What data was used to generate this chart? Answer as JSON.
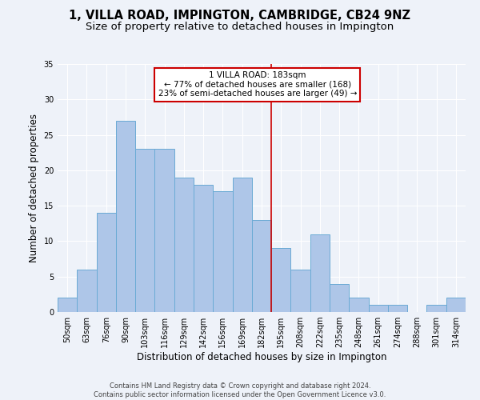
{
  "title": "1, VILLA ROAD, IMPINGTON, CAMBRIDGE, CB24 9NZ",
  "subtitle": "Size of property relative to detached houses in Impington",
  "xlabel": "Distribution of detached houses by size in Impington",
  "ylabel": "Number of detached properties",
  "categories": [
    "50sqm",
    "63sqm",
    "76sqm",
    "90sqm",
    "103sqm",
    "116sqm",
    "129sqm",
    "142sqm",
    "156sqm",
    "169sqm",
    "182sqm",
    "195sqm",
    "208sqm",
    "222sqm",
    "235sqm",
    "248sqm",
    "261sqm",
    "274sqm",
    "288sqm",
    "301sqm",
    "314sqm"
  ],
  "values": [
    2,
    6,
    14,
    27,
    23,
    23,
    19,
    18,
    17,
    19,
    13,
    9,
    6,
    11,
    4,
    2,
    1,
    1,
    0,
    1,
    2
  ],
  "bar_color": "#aec6e8",
  "bar_edge_color": "#6aaad4",
  "vline_color": "#cc0000",
  "vline_x": 10.5,
  "annotation_title": "1 VILLA ROAD: 183sqm",
  "annotation_line1": "← 77% of detached houses are smaller (168)",
  "annotation_line2": "23% of semi-detached houses are larger (49) →",
  "annotation_box_color": "#ffffff",
  "annotation_box_edge": "#cc0000",
  "ylim": [
    0,
    35
  ],
  "yticks": [
    0,
    5,
    10,
    15,
    20,
    25,
    30,
    35
  ],
  "footer1": "Contains HM Land Registry data © Crown copyright and database right 2024.",
  "footer2": "Contains public sector information licensed under the Open Government Licence v3.0.",
  "bg_color": "#eef2f9",
  "grid_color": "#ffffff",
  "title_fontsize": 10.5,
  "subtitle_fontsize": 9.5,
  "xlabel_fontsize": 8.5,
  "ylabel_fontsize": 8.5,
  "tick_fontsize": 7,
  "annotation_fontsize": 7.5,
  "footer_fontsize": 6
}
